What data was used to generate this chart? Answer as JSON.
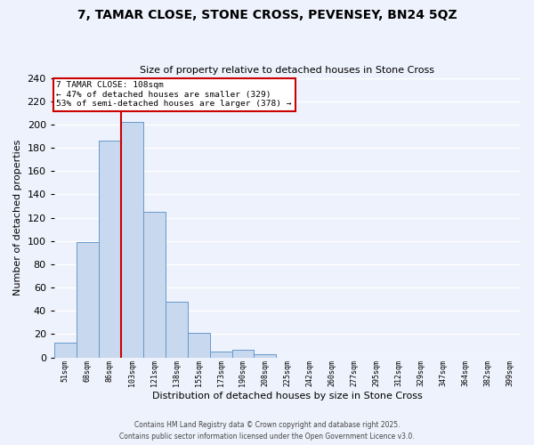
{
  "title": "7, TAMAR CLOSE, STONE CROSS, PEVENSEY, BN24 5QZ",
  "subtitle": "Size of property relative to detached houses in Stone Cross",
  "xlabel": "Distribution of detached houses by size in Stone Cross",
  "ylabel": "Number of detached properties",
  "bar_labels": [
    "51sqm",
    "68sqm",
    "86sqm",
    "103sqm",
    "121sqm",
    "138sqm",
    "155sqm",
    "173sqm",
    "190sqm",
    "208sqm",
    "225sqm",
    "242sqm",
    "260sqm",
    "277sqm",
    "295sqm",
    "312sqm",
    "329sqm",
    "347sqm",
    "364sqm",
    "382sqm",
    "399sqm"
  ],
  "bar_values": [
    13,
    99,
    186,
    202,
    125,
    48,
    21,
    5,
    7,
    3,
    0,
    0,
    0,
    0,
    0,
    0,
    0,
    0,
    0,
    0,
    0
  ],
  "bar_color": "#c8d8ee",
  "bar_edge_color": "#6699cc",
  "vline_color": "#cc0000",
  "annotation_title": "7 TAMAR CLOSE: 108sqm",
  "annotation_line2": "← 47% of detached houses are smaller (329)",
  "annotation_line3": "53% of semi-detached houses are larger (378) →",
  "annotation_box_color": "#ffffff",
  "annotation_box_edge": "#cc0000",
  "ylim": [
    0,
    240
  ],
  "yticks": [
    0,
    20,
    40,
    60,
    80,
    100,
    120,
    140,
    160,
    180,
    200,
    220,
    240
  ],
  "footer_line1": "Contains HM Land Registry data © Crown copyright and database right 2025.",
  "footer_line2": "Contains public sector information licensed under the Open Government Licence v3.0.",
  "bg_color": "#eef2fc",
  "grid_color": "#ffffff"
}
